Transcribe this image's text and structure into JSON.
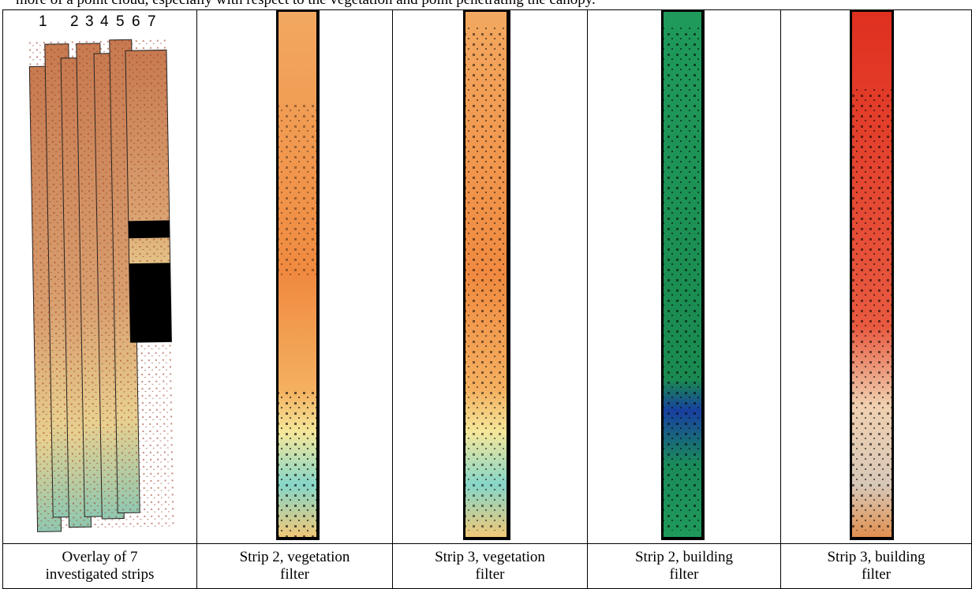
{
  "intro_text": "more of a point cloud, especially with respect to the vegetation and point penetrating the canopy.",
  "figure": {
    "strip_numbers": [
      "1",
      "2",
      "3",
      "4",
      "5",
      "6",
      "7"
    ],
    "captions": [
      [
        "Overlay of 7",
        "investigated strips"
      ],
      [
        "Strip 2, vegetation",
        "filter"
      ],
      [
        "Strip 3, vegetation",
        "filter"
      ],
      [
        "Strip 2, building",
        "filter"
      ],
      [
        "Strip 3, building",
        "filter"
      ]
    ]
  }
}
